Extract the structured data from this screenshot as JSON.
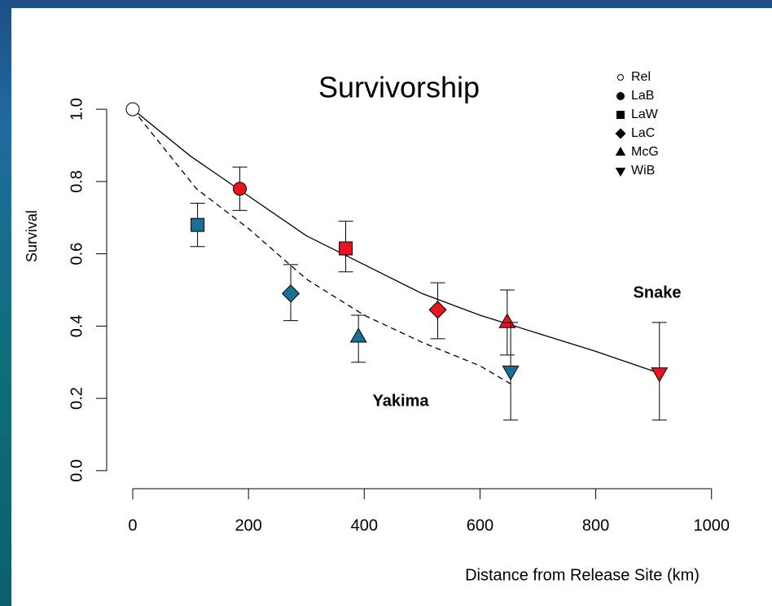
{
  "chart_data": {
    "type": "scatter",
    "title": "Survivorship",
    "xlabel": "Distance from Release Site (km)",
    "ylabel": "Survival",
    "xlim": [
      -45,
      1044
    ],
    "ylim": [
      -0.05,
      1.14
    ],
    "xticks": [
      0,
      200,
      400,
      600,
      800,
      1000
    ],
    "yticks": [
      {
        "value": 0,
        "label": "0.0"
      },
      0.2,
      0.4,
      0.6,
      0.8,
      {
        "value": 1,
        "label": "1.0"
      }
    ],
    "legend": {
      "position": "top-right",
      "labels": [
        "Rel",
        "LaB",
        "LaW",
        "LaC",
        "McG",
        "WiB"
      ],
      "markers": [
        "circle-open",
        "circle",
        "square",
        "diamond",
        "triangle-up",
        "triangle-down"
      ]
    },
    "series": [
      {
        "name": "Snake",
        "color": "#e8141e",
        "line": "solid",
        "x": [
          0,
          185,
          368,
          527,
          647,
          910
        ],
        "values": [
          1.0,
          0.78,
          0.615,
          0.445,
          0.41,
          0.27
        ],
        "lower": [
          null,
          0.72,
          0.55,
          0.365,
          0.32,
          0.14
        ],
        "upper": [
          null,
          0.84,
          0.69,
          0.52,
          0.5,
          0.41
        ],
        "markers": [
          "circle-open",
          "circle",
          "square",
          "diamond",
          "triangle-up",
          "triangle-down"
        ],
        "fit_x": [
          0,
          100,
          200,
          300,
          400,
          500,
          600,
          700,
          800,
          900
        ],
        "fit_values": [
          1.0,
          0.87,
          0.76,
          0.65,
          0.57,
          0.49,
          0.43,
          0.38,
          0.33,
          0.275
        ]
      },
      {
        "name": "Yakima",
        "color": "#1a6f94",
        "line": "dashed",
        "x": [
          112,
          273,
          390,
          653
        ],
        "values": [
          0.68,
          0.49,
          0.37,
          0.275
        ],
        "lower": [
          0.62,
          0.415,
          0.3,
          0.14
        ],
        "upper": [
          0.74,
          0.57,
          0.43,
          0.41
        ],
        "markers": [
          "square",
          "diamond",
          "triangle-up",
          "triangle-down"
        ],
        "fit_x": [
          0,
          110,
          200,
          300,
          400,
          500,
          600,
          653
        ],
        "fit_values": [
          1.0,
          0.78,
          0.67,
          0.53,
          0.43,
          0.355,
          0.29,
          0.24
        ]
      }
    ]
  }
}
